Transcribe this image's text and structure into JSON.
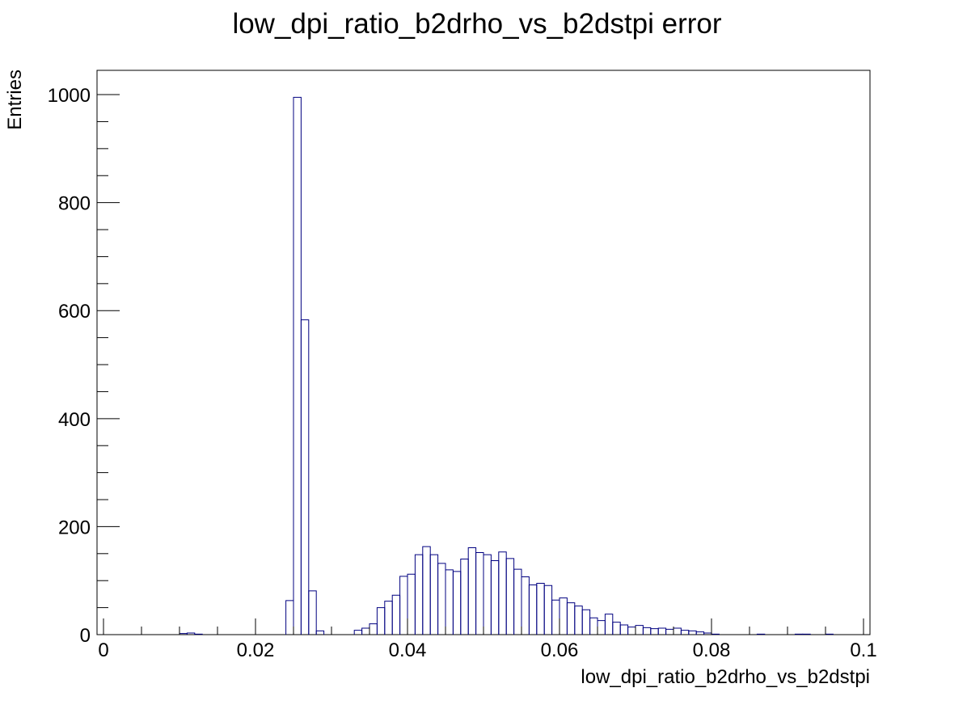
{
  "chart_data": {
    "type": "bar",
    "title": "low_dpi_ratio_b2drho_vs_b2dstpi error",
    "xlabel": "low_dpi_ratio_b2drho_vs_b2dstpi",
    "ylabel": "Entries",
    "xlim": [
      0,
      0.1
    ],
    "ylim": [
      0,
      1045
    ],
    "x_ticks": [
      "0",
      "0.02",
      "0.04",
      "0.06",
      "0.08",
      "0.1"
    ],
    "y_ticks": [
      "0",
      "200",
      "400",
      "600",
      "800",
      "1000"
    ],
    "grid": false,
    "legend": "none",
    "bin_width": 0.001,
    "x": [
      0.0005,
      0.0015,
      0.0025,
      0.0035,
      0.0045,
      0.0055,
      0.0065,
      0.0075,
      0.0085,
      0.0095,
      0.0105,
      0.0115,
      0.0125,
      0.0135,
      0.0145,
      0.0155,
      0.0165,
      0.0175,
      0.0185,
      0.0195,
      0.0205,
      0.0215,
      0.0225,
      0.0235,
      0.0245,
      0.0255,
      0.0265,
      0.0275,
      0.0285,
      0.0295,
      0.0305,
      0.0315,
      0.0325,
      0.0335,
      0.0345,
      0.0355,
      0.0365,
      0.0375,
      0.0385,
      0.0395,
      0.0405,
      0.0415,
      0.0425,
      0.0435,
      0.0445,
      0.0455,
      0.0465,
      0.0475,
      0.0485,
      0.0495,
      0.0505,
      0.0515,
      0.0525,
      0.0535,
      0.0545,
      0.0555,
      0.0565,
      0.0575,
      0.0585,
      0.0595,
      0.0605,
      0.0615,
      0.0625,
      0.0635,
      0.0645,
      0.0655,
      0.0665,
      0.0675,
      0.0685,
      0.0695,
      0.0705,
      0.0715,
      0.0725,
      0.0735,
      0.0745,
      0.0755,
      0.0765,
      0.0775,
      0.0785,
      0.0795,
      0.0805,
      0.0815,
      0.0825,
      0.0835,
      0.0845,
      0.0855,
      0.0865,
      0.0875,
      0.0885,
      0.0895,
      0.0905,
      0.0915,
      0.0925,
      0.0935,
      0.0945,
      0.0955,
      0.0965,
      0.0975,
      0.0985,
      0.0995
    ],
    "values": [
      0,
      0,
      0,
      0,
      0,
      0,
      0,
      0,
      0,
      0,
      2,
      3,
      1,
      0,
      0,
      0,
      0,
      0,
      0,
      0,
      0,
      0,
      0,
      0,
      63,
      995,
      583,
      81,
      7,
      0,
      0,
      0,
      0,
      8,
      12,
      20,
      50,
      62,
      73,
      108,
      112,
      148,
      163,
      148,
      132,
      120,
      117,
      140,
      161,
      152,
      148,
      137,
      153,
      141,
      121,
      107,
      92,
      95,
      91,
      64,
      68,
      59,
      53,
      46,
      31,
      26,
      38,
      23,
      18,
      14,
      17,
      13,
      11,
      12,
      10,
      12,
      8,
      7,
      5,
      3,
      1,
      0,
      0,
      0,
      0,
      0,
      1,
      0,
      0,
      0,
      0,
      1,
      1,
      0,
      0,
      1,
      0,
      0,
      0,
      0
    ]
  }
}
